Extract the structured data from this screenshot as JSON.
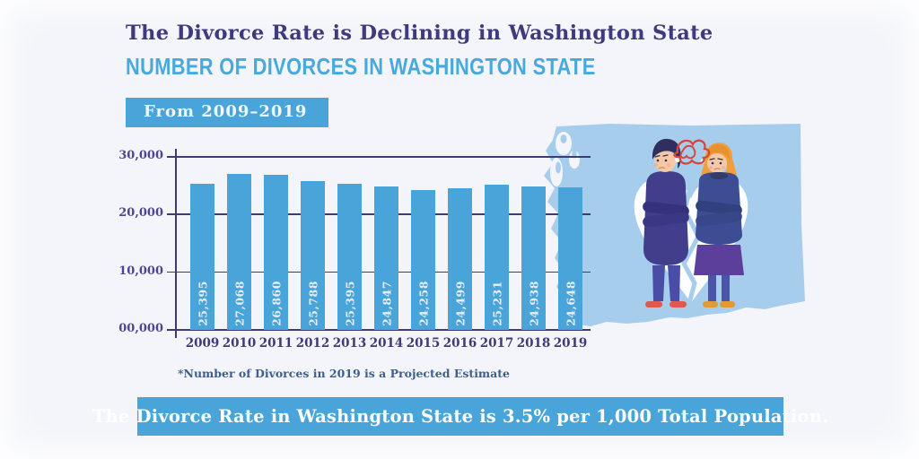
{
  "colors": {
    "background": "#f4f5fa",
    "accent_blue": "#49a5d9",
    "title_indigo": "#3e3a7d",
    "subtitle_blue": "#48a9dc",
    "axis_indigo": "#3d3a76",
    "ytick_purple": "#4c4590",
    "bar_label_white": "#e9edf9",
    "footnote_slate": "#3e5e8c",
    "banner_text_white": "#fdfeff",
    "map_light_blue": "#a6ceec",
    "scribble_red": "#d5473e"
  },
  "header": {
    "title": "The Divorce Rate is Declining in Washington State",
    "subtitle": "NUMBER OF DIVORCES IN WASHINGTON STATE",
    "badge": "From 2009–2019"
  },
  "chart_data": {
    "type": "bar",
    "title": "Number of Divorces in Washington State",
    "categories": [
      "2009",
      "2010",
      "2011",
      "2012",
      "2013",
      "2014",
      "2015",
      "2016",
      "2017",
      "2018",
      "2019"
    ],
    "values": [
      25395,
      27068,
      26860,
      25788,
      25395,
      24847,
      24258,
      24499,
      25231,
      24938,
      24648
    ],
    "bar_labels": [
      "25,395",
      "27,068",
      "26,860",
      "25,788",
      "25,395",
      "24,847",
      "24,258",
      "24,499",
      "25,231",
      "24,938",
      "24,648"
    ],
    "y_ticks": [
      "30,000",
      "20,000",
      "10,000",
      "00,000"
    ],
    "ylim": [
      0,
      30000
    ],
    "grid": true,
    "legend_position": "none",
    "bar_color": "#49a5d9",
    "xlabel": "",
    "ylabel": ""
  },
  "footnote": "*Number of Divorces in 2019 is a Projected Estimate",
  "banner": {
    "text": "The Divorce Rate in Washington State is 3.5% per 1,000 Total Population."
  },
  "illustration": {
    "icons": [
      "washington-state-map",
      "broken-heart",
      "heart-crack",
      "man-figure",
      "woman-figure",
      "angry-scribble"
    ]
  }
}
